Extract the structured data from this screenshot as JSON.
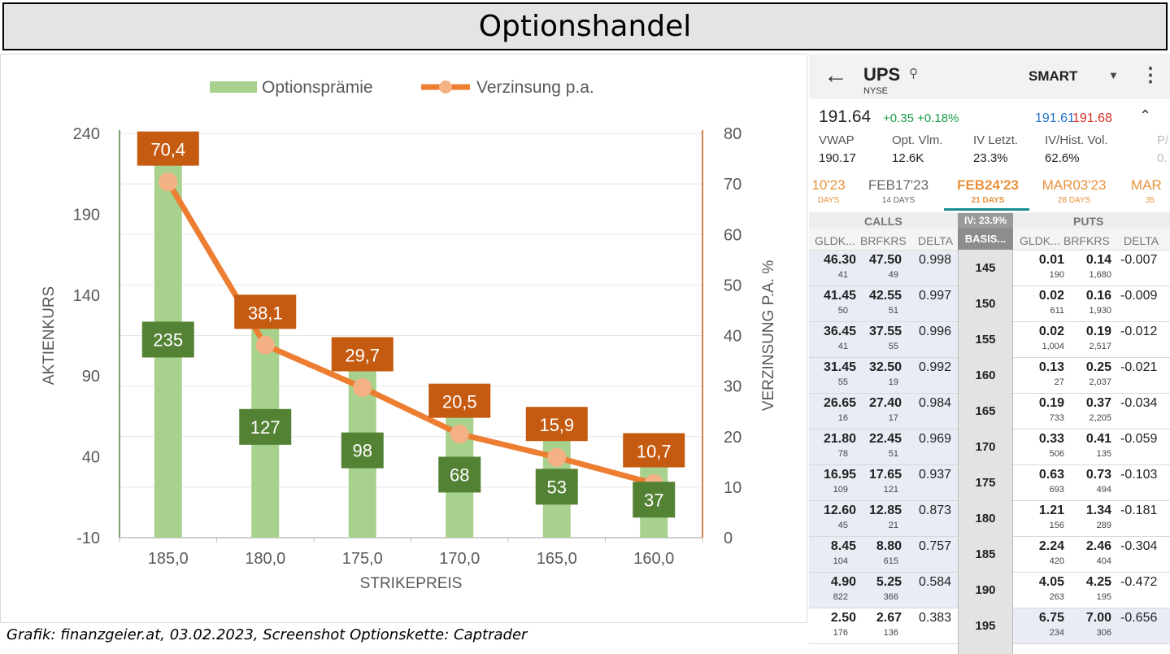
{
  "page_title": "Optionshandel",
  "caption": "Grafik: finanzgeier.at, 03.02.2023, Screenshot Optionskette: Captrader",
  "chart_data": {
    "type": "bar",
    "categories": [
      "185,0",
      "180,0",
      "175,0",
      "170,0",
      "165,0",
      "160,0"
    ],
    "series": [
      {
        "name": "Optionsprämie",
        "type": "bar",
        "axis": "left",
        "color": "#a9d18e",
        "values": [
          235,
          127,
          98,
          68,
          53,
          37
        ],
        "labels": [
          "235",
          "127",
          "98",
          "68",
          "53",
          "37"
        ],
        "label_color": "#548235"
      },
      {
        "name": "Verzinsung p.a.",
        "type": "line",
        "axis": "right",
        "color": "#ed7d31",
        "marker_color": "#f4b183",
        "values": [
          70.4,
          38.1,
          29.7,
          20.5,
          15.9,
          10.7
        ],
        "labels": [
          "70,4",
          "38,1",
          "29,7",
          "20,5",
          "15,9",
          "10,7"
        ],
        "label_color": "#c55a11"
      }
    ],
    "xlabel": "STRIKEPREIS",
    "ylabel": "AKTIENKURS",
    "y2label": "VERZINSUNG P.A. %",
    "ylim": [
      -10,
      240
    ],
    "yticks": [
      -10,
      40,
      90,
      140,
      190,
      240
    ],
    "y2lim": [
      0,
      80
    ],
    "y2ticks": [
      0,
      10,
      20,
      30,
      40,
      50,
      60,
      70,
      80
    ],
    "legend": "top",
    "grid": true,
    "left_axis_color": "#548235",
    "right_axis_color": "#c55a11"
  },
  "phone": {
    "symbol": "UPS",
    "exchange": "NYSE",
    "routing": "SMART",
    "last": "191.64",
    "change": "+0.35 +0.18%",
    "bid": "191.61",
    "ask": "191.68",
    "stats": [
      {
        "label": "VWAP",
        "value": "190.17"
      },
      {
        "label": "Opt. Vlm.",
        "value": "12.6K"
      },
      {
        "label": "IV Letzt.",
        "value": "23.3%"
      },
      {
        "label": "IV/Hist. Vol.",
        "value": "62.6%"
      },
      {
        "label": "P/",
        "value": "0."
      }
    ],
    "expiries": [
      {
        "date": "10'23",
        "days": "DAYS"
      },
      {
        "date": "FEB17'23",
        "days": "14 DAYS"
      },
      {
        "date": "FEB24'23",
        "days": "21 DAYS"
      },
      {
        "date": "MAR03'23",
        "days": "28 DAYS"
      },
      {
        "date": "MAR",
        "days": "35"
      }
    ],
    "calls_label": "CALLS",
    "puts_label": "PUTS",
    "iv_label": "IV: 23.9%",
    "basis_label": "BASIS...",
    "col_headers": {
      "bid": "GLDK...",
      "ask": "BRFKRS",
      "delta": "DELTA"
    },
    "rows": [
      {
        "strike": "145",
        "c_bid": "46.30",
        "c_bsz": "41",
        "c_ask": "47.50",
        "c_asz": "49",
        "c_delta": "0.998",
        "p_bid": "0.01",
        "p_bsz": "190",
        "p_ask": "0.14",
        "p_asz": "1,680",
        "p_delta": "-0.007"
      },
      {
        "strike": "150",
        "c_bid": "41.45",
        "c_bsz": "50",
        "c_ask": "42.55",
        "c_asz": "51",
        "c_delta": "0.997",
        "p_bid": "0.02",
        "p_bsz": "611",
        "p_ask": "0.16",
        "p_asz": "1,930",
        "p_delta": "-0.009"
      },
      {
        "strike": "155",
        "c_bid": "36.45",
        "c_bsz": "41",
        "c_ask": "37.55",
        "c_asz": "55",
        "c_delta": "0.996",
        "p_bid": "0.02",
        "p_bsz": "1,004",
        "p_ask": "0.19",
        "p_asz": "2,517",
        "p_delta": "-0.012"
      },
      {
        "strike": "160",
        "c_bid": "31.45",
        "c_bsz": "55",
        "c_ask": "32.50",
        "c_asz": "19",
        "c_delta": "0.992",
        "p_bid": "0.13",
        "p_bsz": "27",
        "p_ask": "0.25",
        "p_asz": "2,037",
        "p_delta": "-0.021"
      },
      {
        "strike": "165",
        "c_bid": "26.65",
        "c_bsz": "16",
        "c_ask": "27.40",
        "c_asz": "17",
        "c_delta": "0.984",
        "p_bid": "0.19",
        "p_bsz": "733",
        "p_ask": "0.37",
        "p_asz": "2,205",
        "p_delta": "-0.034"
      },
      {
        "strike": "170",
        "c_bid": "21.80",
        "c_bsz": "78",
        "c_ask": "22.45",
        "c_asz": "51",
        "c_delta": "0.969",
        "p_bid": "0.33",
        "p_bsz": "506",
        "p_ask": "0.41",
        "p_asz": "135",
        "p_delta": "-0.059"
      },
      {
        "strike": "175",
        "c_bid": "16.95",
        "c_bsz": "109",
        "c_ask": "17.65",
        "c_asz": "121",
        "c_delta": "0.937",
        "p_bid": "0.63",
        "p_bsz": "693",
        "p_ask": "0.73",
        "p_asz": "494",
        "p_delta": "-0.103"
      },
      {
        "strike": "180",
        "c_bid": "12.60",
        "c_bsz": "45",
        "c_ask": "12.85",
        "c_asz": "21",
        "c_delta": "0.873",
        "p_bid": "1.21",
        "p_bsz": "156",
        "p_ask": "1.34",
        "p_asz": "289",
        "p_delta": "-0.181"
      },
      {
        "strike": "185",
        "c_bid": "8.45",
        "c_bsz": "104",
        "c_ask": "8.80",
        "c_asz": "615",
        "c_delta": "0.757",
        "p_bid": "2.24",
        "p_bsz": "420",
        "p_ask": "2.46",
        "p_asz": "404",
        "p_delta": "-0.304"
      },
      {
        "strike": "190",
        "c_bid": "4.90",
        "c_bsz": "822",
        "c_ask": "5.25",
        "c_asz": "366",
        "c_delta": "0.584",
        "p_bid": "4.05",
        "p_bsz": "263",
        "p_ask": "4.25",
        "p_asz": "195",
        "p_delta": "-0.472"
      },
      {
        "strike": "195",
        "c_bid": "2.50",
        "c_bsz": "176",
        "c_ask": "2.67",
        "c_asz": "136",
        "c_delta": "0.383",
        "p_bid": "6.75",
        "p_bsz": "234",
        "p_ask": "7.00",
        "p_asz": "306",
        "p_delta": "-0.656"
      }
    ]
  }
}
